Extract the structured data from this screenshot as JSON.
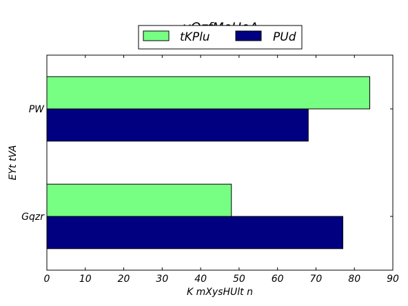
{
  "chart_data": {
    "type": "bar",
    "orientation": "horizontal",
    "title": "vQzfMoUeA",
    "xlabel": "K  mXysHUlt n",
    "ylabel": "EYt tVA",
    "categories": [
      "PW",
      "Gqzr"
    ],
    "series": [
      {
        "name": "tKPlu",
        "color": "#77ff84",
        "values": [
          84,
          48
        ]
      },
      {
        "name": "PUd",
        "color": "#000080",
        "values": [
          68,
          77
        ]
      }
    ],
    "xlim": [
      0,
      90
    ],
    "xticks": [
      "0",
      "10",
      "20",
      "30",
      "40",
      "50",
      "60",
      "70",
      "80",
      "90"
    ],
    "grid": false,
    "legend_position": "top-center"
  }
}
